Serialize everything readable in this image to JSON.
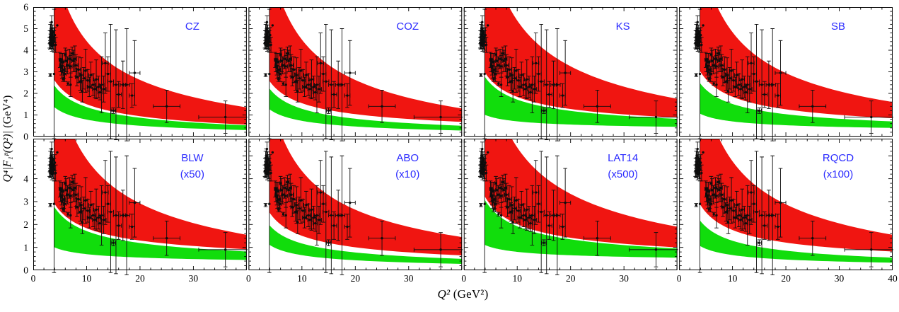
{
  "axes": {
    "x_label_math": "Q²",
    "x_label_unit": " (GeV²)",
    "y_label_math": "Q⁴|F₁ᵖ(Q²)|",
    "y_label_unit": " (GeV⁴)"
  },
  "figure_colors": {
    "band_upper": "#f01511",
    "band_lower": "#11dd0c",
    "panel_label": "#2a2aff",
    "points": "#0d0d0d",
    "frame": "#000000"
  },
  "chart_data": {
    "type": "scatter",
    "description": "Q4*F1p proton form factor data vs Q2, 8 panels comparing model bands (red: upper band, green: lower band); identical experimental points in every panel",
    "x_range": [
      0,
      40
    ],
    "x_ticks": [
      0,
      10,
      20,
      30
    ],
    "x_last_tick": 40,
    "x_minor_step": 2,
    "grid": false,
    "rows": [
      {
        "y_max": 6.0,
        "y_ticks": [
          0,
          1,
          2,
          3,
          4,
          5,
          6
        ]
      },
      {
        "y_max": 5.75,
        "y_ticks": [
          0,
          1,
          2,
          3,
          4
        ]
      }
    ],
    "y_minor_step": 0.2,
    "band_model": "y = a + k/sqrt(x), fitted through values at Q2=4 and Q2=40, plotted for Q2 >= 3.95",
    "panels": [
      {
        "label": "CZ",
        "scale_note": "",
        "red": {
          "y4": 8.0,
          "y40": 1.35,
          "y4b": 2.6,
          "y40b": 0.55
        },
        "green": {
          "y4": 2.35,
          "y40": 0.52,
          "y4b": 1.35,
          "y40b": 0.3
        }
      },
      {
        "label": "COZ",
        "scale_note": "",
        "red": {
          "y4": 8.2,
          "y40": 1.3,
          "y4b": 2.55,
          "y40b": 0.68
        },
        "green": {
          "y4": 2.2,
          "y40": 0.5,
          "y4b": 1.25,
          "y40b": 0.28
        }
      },
      {
        "label": "KS",
        "scale_note": "",
        "red": {
          "y4": 9.6,
          "y40": 1.75,
          "y4b": 2.95,
          "y40b": 0.88
        },
        "green": {
          "y4": 2.75,
          "y40": 0.82,
          "y4b": 1.0,
          "y40b": 0.45
        }
      },
      {
        "label": "SB",
        "scale_note": "",
        "red": {
          "y4": 8.6,
          "y40": 1.6,
          "y4b": 3.0,
          "y40b": 0.85
        },
        "green": {
          "y4": 2.45,
          "y40": 0.7,
          "y4b": 1.05,
          "y40b": 0.4
        }
      },
      {
        "label": "BLW",
        "scale_note": "(x50)",
        "red": {
          "y4": 8.7,
          "y40": 1.55,
          "y4b": 2.9,
          "y40b": 0.92
        },
        "green": {
          "y4": 2.75,
          "y40": 0.82,
          "y4b": 1.0,
          "y40b": 0.45
        }
      },
      {
        "label": "ABO",
        "scale_note": "(x10)",
        "red": {
          "y4": 7.7,
          "y40": 1.45,
          "y4b": 2.5,
          "y40b": 0.65
        },
        "green": {
          "y4": 1.95,
          "y40": 0.5,
          "y4b": 1.1,
          "y40b": 0.28
        }
      },
      {
        "label": "LAT14",
        "scale_note": "(x500)",
        "red": {
          "y4": 9.4,
          "y40": 1.9,
          "y4b": 3.2,
          "y40b": 1.0
        },
        "green": {
          "y4": 3.05,
          "y40": 0.95,
          "y4b": 1.1,
          "y40b": 0.55
        }
      },
      {
        "label": "RQCD",
        "scale_note": "(x100)",
        "red": {
          "y4": 8.5,
          "y40": 1.55,
          "y4b": 2.85,
          "y40b": 0.82
        },
        "green": {
          "y4": 2.15,
          "y40": 0.55,
          "y4b": 1.05,
          "y40b": 0.33
        }
      }
    ],
    "points_shared_across_panels": true,
    "points": [
      [
        3.05,
        4.35,
        0,
        0.25
      ],
      [
        3.1,
        4.6,
        0,
        0.3
      ],
      [
        3.15,
        4.25,
        0,
        0.2
      ],
      [
        3.2,
        2.85,
        0,
        0.07
      ],
      [
        3.2,
        4.9,
        0,
        0.3
      ],
      [
        3.25,
        4.5,
        0,
        0.25
      ],
      [
        3.3,
        5.0,
        0,
        0.3
      ],
      [
        3.3,
        4.3,
        0,
        0.22
      ],
      [
        3.35,
        4.65,
        0,
        0.28
      ],
      [
        3.4,
        4.4,
        0,
        0.25
      ],
      [
        3.45,
        5.3,
        0,
        0.3
      ],
      [
        3.5,
        4.75,
        0,
        0.3
      ],
      [
        3.5,
        4.2,
        0,
        0.25
      ],
      [
        3.55,
        4.5,
        0,
        0.3
      ],
      [
        3.6,
        4.85,
        0,
        0.32
      ],
      [
        3.65,
        4.35,
        0,
        0.28
      ],
      [
        3.7,
        4.6,
        0,
        0.35
      ],
      [
        3.75,
        4.3,
        0,
        0.3
      ],
      [
        3.8,
        4.55,
        0,
        0.35
      ],
      [
        3.9,
        2.9,
        0,
        3.0
      ],
      [
        3.9,
        4.4,
        0,
        0.5
      ],
      [
        4.05,
        4.7,
        0,
        0.35
      ],
      [
        4.2,
        4.25,
        0,
        0.35
      ],
      [
        4.5,
        5.15,
        0,
        0
      ],
      [
        5.0,
        3.55,
        0.15,
        0.35
      ],
      [
        5.1,
        3.3,
        0.15,
        0.3
      ],
      [
        5.2,
        3.55,
        0.15,
        0.3
      ],
      [
        5.3,
        3.2,
        0.15,
        0.35
      ],
      [
        5.4,
        3.0,
        0.15,
        0.3
      ],
      [
        5.5,
        3.45,
        0.2,
        0.4
      ],
      [
        5.6,
        2.65,
        0,
        0.1
      ],
      [
        5.75,
        3.1,
        0.25,
        0.4
      ],
      [
        5.9,
        2.9,
        0.25,
        0.35
      ],
      [
        6.0,
        3.8,
        0.2,
        0.3
      ],
      [
        6.2,
        3.5,
        0.25,
        0.5
      ],
      [
        6.4,
        3.3,
        0.25,
        0.4
      ],
      [
        6.5,
        2.45,
        0,
        0.08
      ],
      [
        6.8,
        3.6,
        0.3,
        0.45
      ],
      [
        7.0,
        3.25,
        0.3,
        0.5
      ],
      [
        7.0,
        2.4,
        0,
        0.55
      ],
      [
        7.3,
        3.85,
        0.3,
        0.3
      ],
      [
        7.5,
        3.5,
        0.3,
        0.5
      ],
      [
        7.8,
        3.6,
        0.3,
        0.6
      ],
      [
        8.0,
        3.3,
        0.35,
        0.5
      ],
      [
        8.2,
        2.75,
        0.3,
        0.4
      ],
      [
        8.5,
        3.1,
        0.35,
        0.6
      ],
      [
        8.8,
        2.55,
        0.3,
        0.4
      ],
      [
        9.0,
        2.85,
        0.35,
        0.8
      ],
      [
        9.2,
        2.1,
        0,
        0.5
      ],
      [
        9.5,
        2.7,
        0.4,
        0.5
      ],
      [
        9.8,
        3.05,
        0.4,
        1.0
      ],
      [
        10.2,
        2.6,
        0.4,
        0.5
      ],
      [
        10.5,
        2.3,
        0.4,
        0.45
      ],
      [
        10.8,
        2.85,
        0.45,
        0.6
      ],
      [
        11.2,
        2.4,
        0.45,
        0.5
      ],
      [
        11.5,
        2.2,
        0.4,
        0.4
      ],
      [
        11.8,
        2.65,
        0.45,
        0.9
      ],
      [
        12.2,
        2.3,
        0.45,
        0.5
      ],
      [
        12.5,
        2.05,
        0.4,
        0.35
      ],
      [
        12.8,
        2.4,
        0.45,
        1.3
      ],
      [
        13.2,
        2.2,
        0.45,
        0.6
      ],
      [
        13.5,
        3.4,
        0.55,
        1.4
      ],
      [
        14.0,
        2.9,
        0.5,
        0.8
      ],
      [
        14.5,
        2.55,
        0.55,
        2.65
      ],
      [
        15.0,
        1.2,
        0.4,
        0.13
      ],
      [
        15.5,
        2.4,
        0.5,
        2.55
      ],
      [
        16.0,
        1.95,
        0.5,
        0.6
      ],
      [
        16.8,
        2.4,
        0.5,
        1.1
      ],
      [
        17.5,
        2.4,
        0.55,
        2.6
      ],
      [
        18.5,
        1.9,
        0.5,
        0.55
      ],
      [
        19.0,
        2.95,
        1.0,
        1.5
      ],
      [
        25.0,
        1.4,
        2.5,
        0.75
      ],
      [
        36.0,
        0.9,
        5.0,
        0.75
      ]
    ]
  }
}
